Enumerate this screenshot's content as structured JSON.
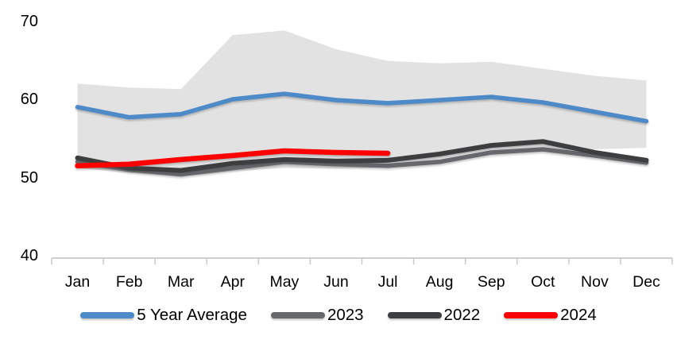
{
  "chart_data": {
    "type": "line",
    "title": "",
    "xlabel": "",
    "ylabel": "",
    "categories": [
      "Jan",
      "Feb",
      "Mar",
      "Apr",
      "May",
      "Jun",
      "Jul",
      "Aug",
      "Sep",
      "Oct",
      "Nov",
      "Dec"
    ],
    "y_ticks": [
      40,
      50,
      60,
      70
    ],
    "ylim": [
      40,
      72
    ],
    "grid": false,
    "legend_position": "bottom",
    "band": {
      "name": "5-year-range",
      "color": "#e2e2e2",
      "top": [
        62.0,
        61.5,
        61.3,
        68.2,
        68.8,
        66.4,
        64.9,
        64.6,
        64.8,
        63.9,
        63.0,
        62.4
      ],
      "bottom": [
        51.2,
        50.6,
        50.1,
        50.8,
        51.2,
        51.1,
        51.3,
        52.0,
        52.9,
        53.4,
        53.6,
        53.8
      ]
    },
    "series": [
      {
        "name": "5 Year Average",
        "color": "#4e8ac8",
        "width": 5.5,
        "values": [
          59.0,
          57.7,
          58.1,
          60.0,
          60.7,
          59.9,
          59.5,
          59.9,
          60.3,
          59.6,
          58.4,
          57.2
        ]
      },
      {
        "name": "2023",
        "color": "#66686c",
        "width": 5.5,
        "values": [
          52.0,
          51.0,
          50.4,
          51.2,
          52.0,
          51.7,
          51.5,
          52.0,
          53.2,
          53.6,
          52.8,
          51.9
        ]
      },
      {
        "name": "2022",
        "color": "#3d3e40",
        "width": 6,
        "values": [
          52.5,
          51.2,
          50.9,
          51.8,
          52.3,
          52.1,
          52.2,
          53.0,
          54.1,
          54.6,
          53.2,
          52.2
        ]
      },
      {
        "name": "2024",
        "color": "#fe0000",
        "width": 6.5,
        "values": [
          51.5,
          51.7,
          52.3,
          52.8,
          53.4,
          53.2,
          53.1
        ]
      }
    ],
    "axis_color": "#cfcfcf",
    "tick_color": "#c9c9c9",
    "text_color": "#000000"
  }
}
